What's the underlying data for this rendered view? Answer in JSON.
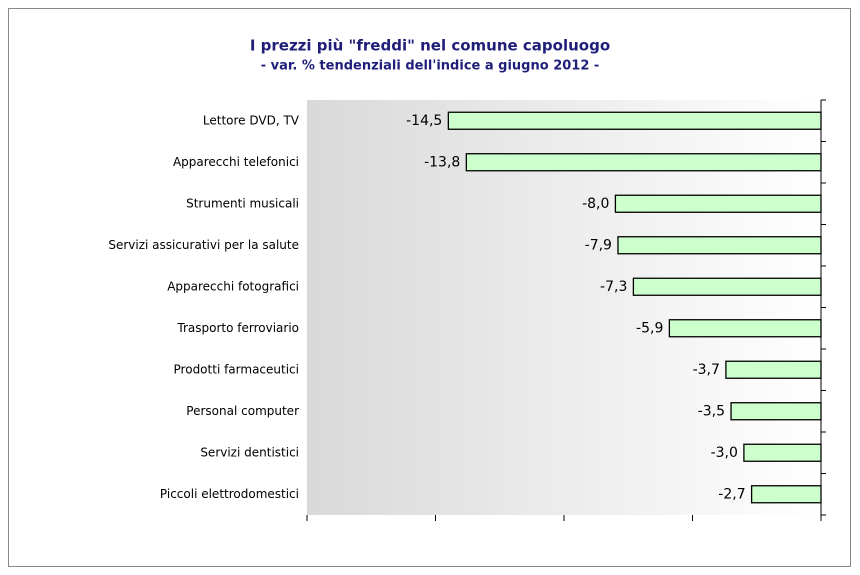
{
  "chart_data": {
    "type": "bar",
    "orientation": "horizontal",
    "title": "I prezzi più \"freddi\" nel comune capoluogo",
    "subtitle": "- var. % tendenziali dell'indice a giugno 2012 -",
    "categories": [
      "Lettore DVD, TV",
      "Apparecchi telefonici",
      "Strumenti musicali",
      "Servizi assicurativi per la salute",
      "Apparecchi fotografici",
      "Trasporto ferroviario",
      "Prodotti farmaceutici",
      "Personal computer",
      "Servizi dentistici",
      "Piccoli elettrodomestici"
    ],
    "values": [
      -14.5,
      -13.8,
      -8.0,
      -7.9,
      -7.3,
      -5.9,
      -3.7,
      -3.5,
      -3.0,
      -2.7
    ],
    "value_labels": [
      "-14,5",
      "-13,8",
      "-8,0",
      "-7,9",
      "-7,3",
      "-5,9",
      "-3,7",
      "-3,5",
      "-3,0",
      "-2,7"
    ],
    "color": "#ccffcc",
    "xlim": [
      -20,
      0
    ],
    "xticks": [
      -20,
      -15,
      -10,
      -5,
      0
    ]
  }
}
